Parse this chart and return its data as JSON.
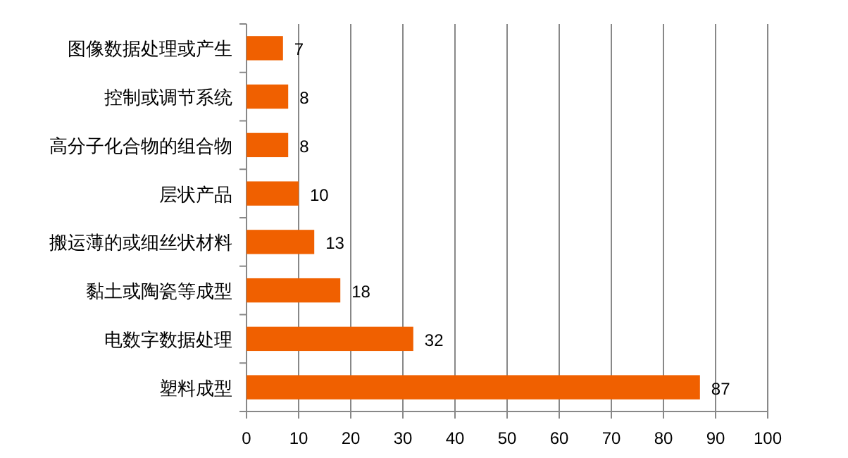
{
  "chart_data": {
    "type": "bar",
    "orientation": "horizontal",
    "categories": [
      "图像数据处理或产生",
      "控制或调节系统",
      "高分子化合物的组合物",
      "层状产品",
      "搬运薄的或细丝状材料",
      "黏土或陶瓷等成型",
      "电数字数据处理",
      "塑料成型"
    ],
    "values": [
      7,
      8,
      8,
      10,
      13,
      18,
      32,
      87
    ],
    "color": "#f06000",
    "data_labels": true,
    "xlim": [
      0,
      100
    ],
    "xticks": [
      0,
      10,
      20,
      30,
      40,
      50,
      60,
      70,
      80,
      90,
      100
    ],
    "grid": "x"
  }
}
